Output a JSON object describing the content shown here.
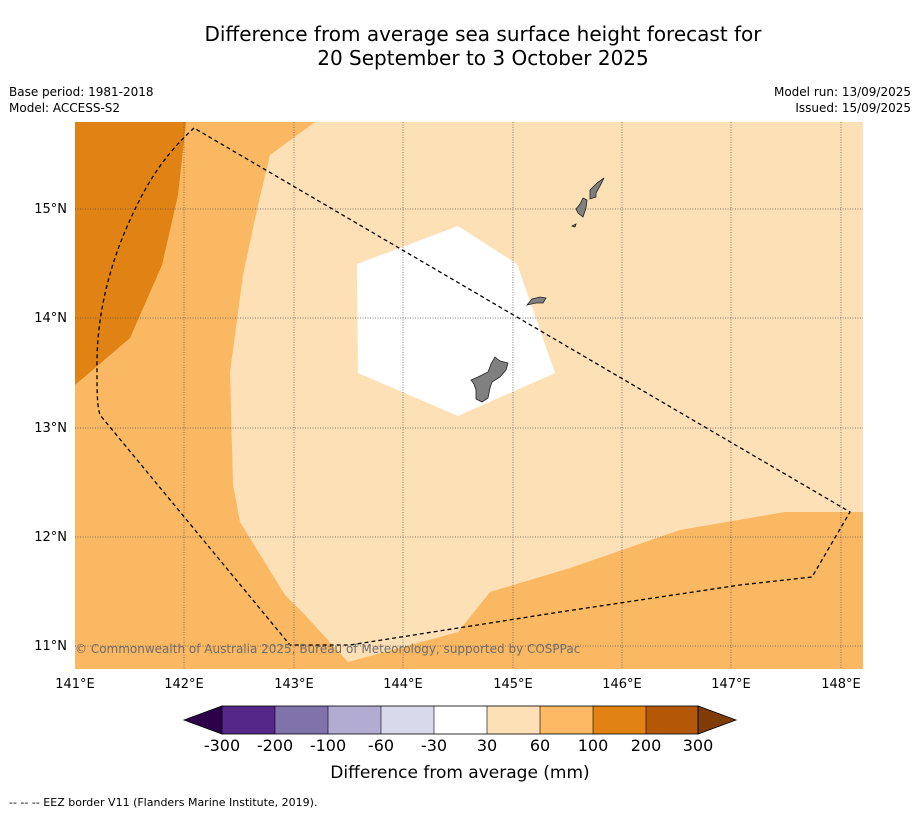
{
  "title": {
    "line1": "Difference from average sea surface height forecast for",
    "line2": "20 September to 3 October 2025"
  },
  "meta_left": {
    "base_period": "Base period: 1981-2018",
    "model": "Model: ACCESS-S2"
  },
  "meta_right": {
    "model_run": "Model run: 13/09/2025",
    "issued": "Issued: 15/09/2025"
  },
  "map": {
    "lon_labels": [
      "141°E",
      "142°E",
      "143°E",
      "144°E",
      "145°E",
      "146°E",
      "147°E",
      "148°E"
    ],
    "lat_labels": [
      "15°N",
      "14°N",
      "13°N",
      "12°N",
      "11°N"
    ],
    "copyright": "© Commonwealth of Australia 2025, Bureau of Meteorology, supported by COSPPac",
    "colors": {
      "100_200": "#e08214",
      "60_100": "#fbb862",
      "30_60": "#fee0b6",
      "neg30_30": "#ffffff",
      "land": "#808080",
      "grid": "#555555",
      "eez": "#000000"
    }
  },
  "colorbar": {
    "ticks": [
      "-300",
      "-200",
      "-100",
      "-60",
      "-30",
      "30",
      "60",
      "100",
      "200",
      "300"
    ],
    "label": "Difference from average (mm)",
    "colors": [
      "#2d004b",
      "#542788",
      "#8073ac",
      "#b2abd2",
      "#d8daeb",
      "#ffffff",
      "#fee0b6",
      "#fdb863",
      "#e08214",
      "#b35806",
      "#7f3b08"
    ]
  },
  "footnote": "--  --  -- EEZ border V11 (Flanders Marine Institute, 2019)."
}
